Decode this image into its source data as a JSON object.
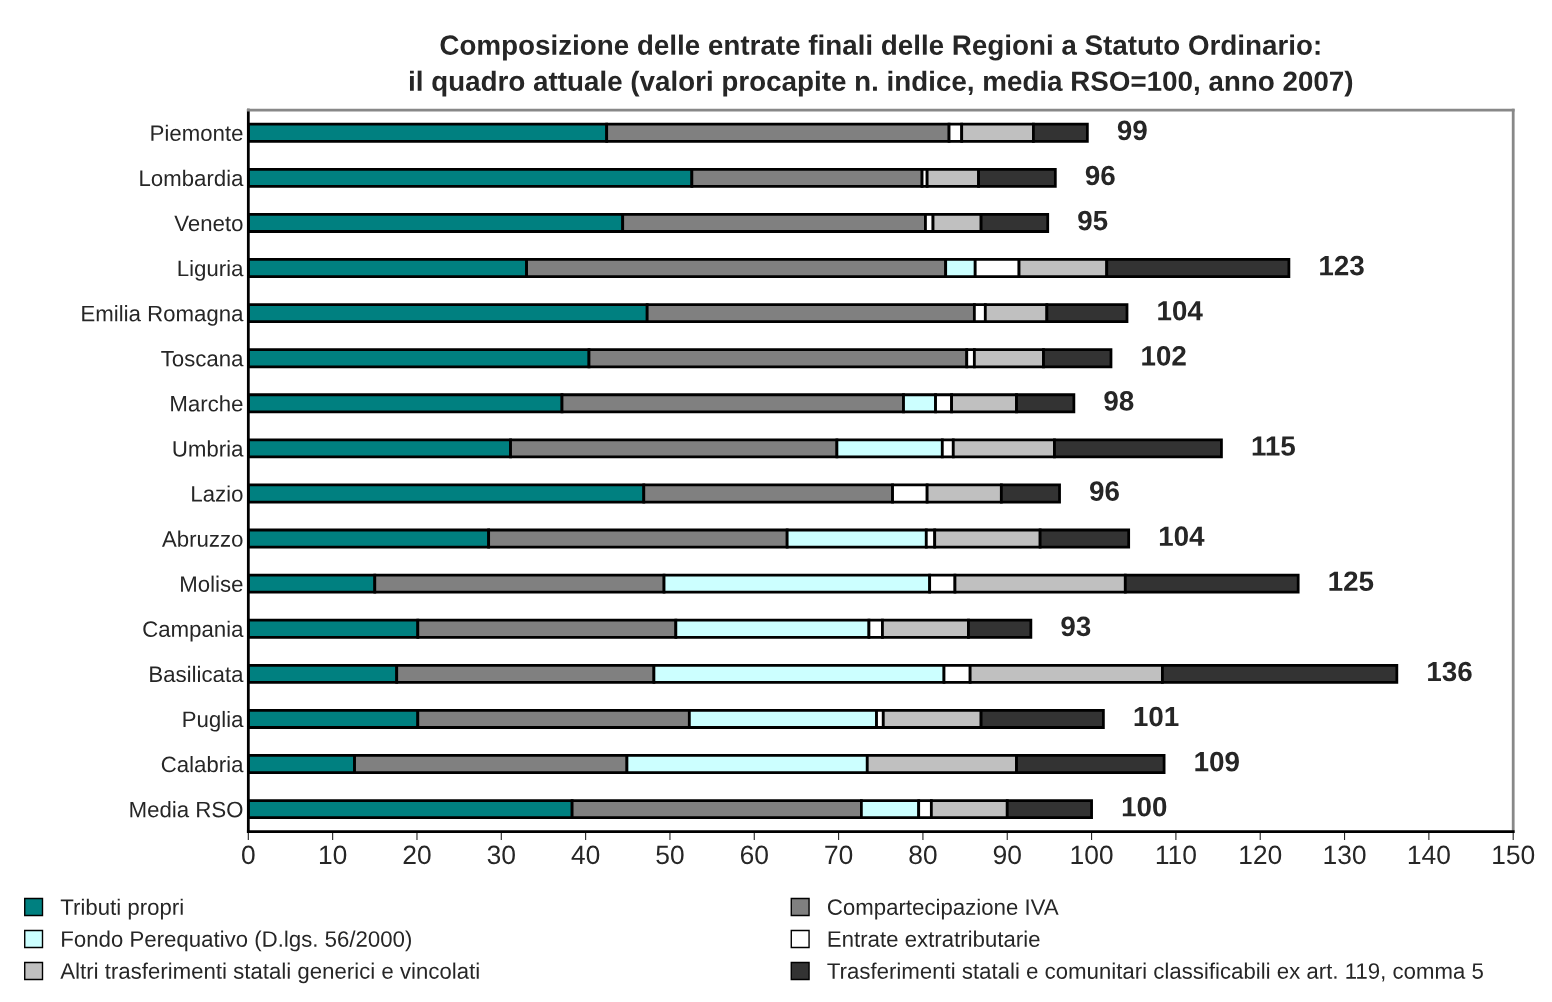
{
  "chart_data": {
    "type": "bar",
    "orientation": "horizontal",
    "stacked": true,
    "title": "Composizione delle entrate finali delle Regioni a Statuto Ordinario:\nil quadro attuale (valori procapite n. indice, media RSO=100, anno 2007)",
    "categories": [
      "Piemonte",
      "Lombardia",
      "Veneto",
      "Liguria",
      "Emilia Romagna",
      "Toscana",
      "Marche",
      "Umbria",
      "Lazio",
      "Abruzzo",
      "Molise",
      "Campania",
      "Basilicata",
      "Puglia",
      "Calabria",
      "Media RSO"
    ],
    "series": [
      {
        "name": "Tributi propri",
        "color": "#008080",
        "values": [
          42.5,
          52.6,
          44.4,
          33.0,
          47.3,
          40.4,
          37.2,
          31.1,
          46.9,
          28.5,
          15.0,
          20.1,
          17.6,
          20.1,
          12.6,
          38.4
        ]
      },
      {
        "name": "Compartecipazione IVA",
        "color": "#808080",
        "values": [
          40.6,
          27.3,
          35.9,
          49.7,
          38.8,
          44.8,
          40.5,
          38.7,
          29.5,
          35.4,
          34.3,
          30.6,
          30.5,
          32.2,
          32.3,
          34.3
        ]
      },
      {
        "name": "Fondo Perequativo (D.lgs. 56/2000)",
        "color": "#ccffff",
        "values": [
          0,
          0,
          0,
          3.5,
          0,
          0,
          3.8,
          12.5,
          0,
          16.5,
          31.5,
          22.9,
          34.4,
          22.2,
          28.5,
          6.8
        ]
      },
      {
        "name": "Entrate extratributarie",
        "color": "#ffffff",
        "values": [
          1.5,
          0.6,
          0.9,
          5.2,
          1.3,
          0.9,
          1.9,
          1.3,
          4.1,
          1.0,
          3.0,
          1.6,
          3.1,
          0.8,
          null,
          1.5
        ]
      },
      {
        "name": "Altri trasferimenti statali generici e vincolati",
        "color": "#c0c0c0",
        "values": [
          8.5,
          6.1,
          5.7,
          10.4,
          7.3,
          8.2,
          7.7,
          12.0,
          8.8,
          12.5,
          20.2,
          10.2,
          22.8,
          11.6,
          17.7,
          9.0
        ]
      },
      {
        "name": "Trasferimenti statali e comunitari classificabili ex art. 119, comma 5",
        "color": "#333333",
        "values": [
          6.4,
          9.1,
          7.9,
          21.6,
          9.5,
          8.0,
          6.8,
          19.8,
          6.9,
          10.5,
          20.5,
          7.4,
          27.8,
          14.5,
          17.5,
          10.0
        ]
      }
    ],
    "totals": [
      "99",
      "96",
      "95",
      "123",
      "104",
      "102",
      "98",
      "115",
      "96",
      "104",
      "125",
      "93",
      "136",
      "101",
      "109",
      "100"
    ],
    "xlim": [
      0,
      150
    ],
    "xticks": [
      0,
      10,
      20,
      30,
      40,
      50,
      60,
      70,
      80,
      90,
      100,
      110,
      120,
      130,
      140,
      150
    ],
    "grid": false,
    "legend": "bottom"
  }
}
